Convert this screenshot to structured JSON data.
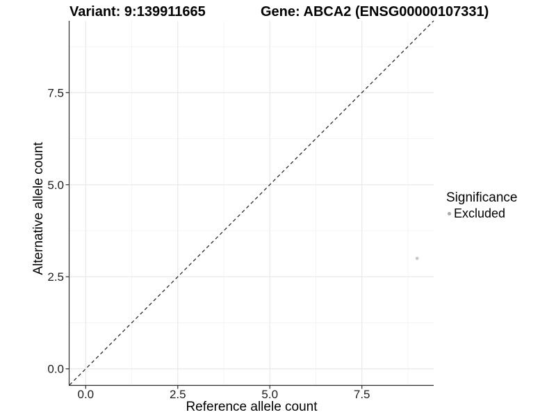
{
  "header": {
    "variant_title": "Variant: 9:139911665",
    "gene_title": "Gene: ABCA2 (ENSG00000107331)"
  },
  "chart_data": {
    "type": "scatter",
    "title_left": "Variant: 9:139911665",
    "title_right": "Gene: ABCA2 (ENSG00000107331)",
    "xlabel": "Reference allele count",
    "ylabel": "Alternative allele count",
    "xlim": [
      -0.44,
      9.45
    ],
    "ylim": [
      -0.44,
      9.45
    ],
    "x_ticks": [
      {
        "value": 0.0,
        "label": "0.0"
      },
      {
        "value": 2.5,
        "label": "2.5"
      },
      {
        "value": 5.0,
        "label": "5.0"
      },
      {
        "value": 7.5,
        "label": "7.5"
      }
    ],
    "y_ticks": [
      {
        "value": 0.0,
        "label": "0.0"
      },
      {
        "value": 2.5,
        "label": "2.5"
      },
      {
        "value": 5.0,
        "label": "5.0"
      },
      {
        "value": 7.5,
        "label": "7.5"
      }
    ],
    "x_minor_ticks": [
      1.25,
      3.75,
      6.25,
      8.75
    ],
    "y_minor_ticks": [
      1.25,
      3.75,
      6.25,
      8.75
    ],
    "grid": true,
    "reference_line": {
      "kind": "identity",
      "slope": 1,
      "intercept": 0,
      "style": "dashed",
      "color": "#1a1a1a"
    },
    "series": [
      {
        "name": "Excluded",
        "color": "#c8c8c8",
        "points": [
          {
            "x": 9,
            "y": 3
          }
        ]
      }
    ],
    "legend": {
      "title": "Significance",
      "position": "right",
      "items": [
        {
          "label": "Excluded",
          "color": "#a9a9a9"
        }
      ]
    },
    "style": {
      "grid_major_color": "#e7e7e7",
      "grid_minor_color": "#f2f2f2",
      "axis_line_color": "#2b2b2b",
      "point_radius": 2.4
    }
  }
}
